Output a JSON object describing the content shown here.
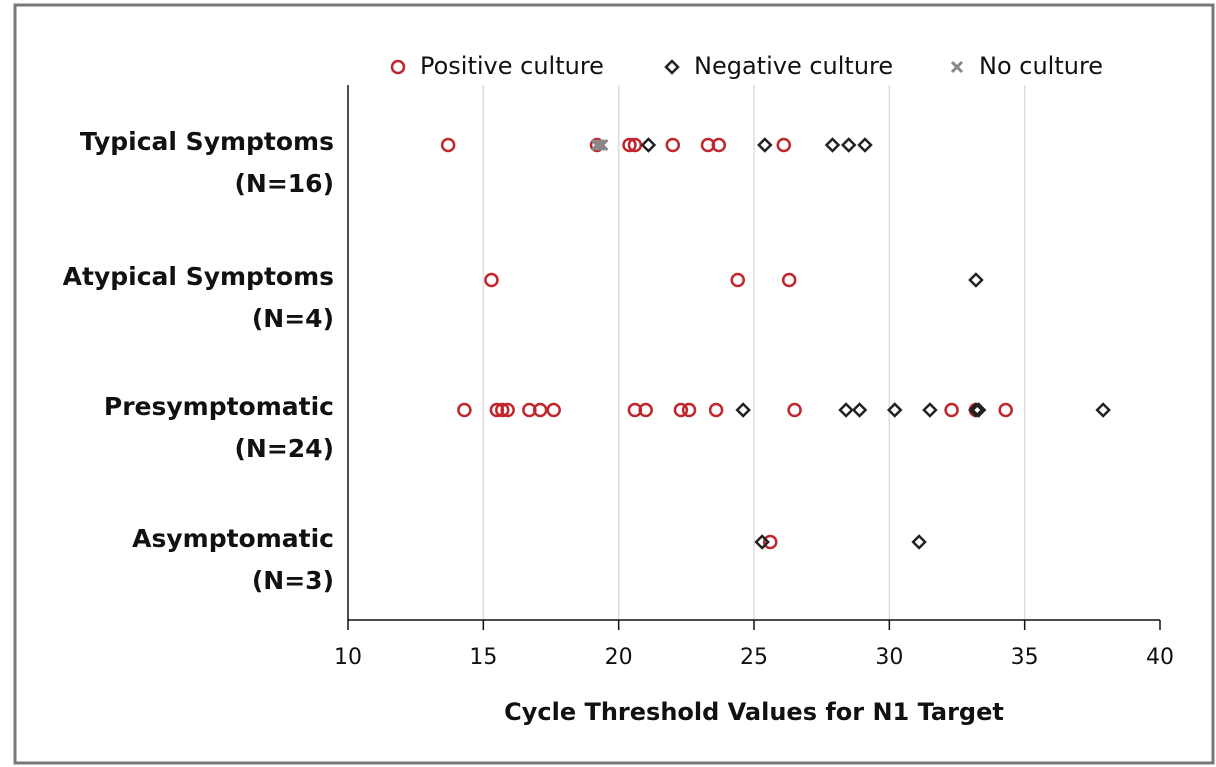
{
  "chart_data": {
    "type": "dotplot",
    "xlabel": "Cycle Threshold Values for N1 Target",
    "categories": [
      [
        "Typical Symptoms",
        "(N=16)"
      ],
      [
        "Atypical Symptoms",
        "(N=4)"
      ],
      [
        "Presymptomatic",
        "(N=24)"
      ],
      [
        "Asymptomatic",
        "(N=3)"
      ]
    ],
    "xlim": [
      10,
      40
    ],
    "xticks": [
      10,
      15,
      20,
      25,
      30,
      35,
      40
    ],
    "grid": true,
    "series": [
      {
        "name": "Positive culture",
        "color": "#c0272d",
        "marker": "circle",
        "values": [
          [
            13.7,
            19.2,
            20.4,
            20.6,
            22.0,
            23.3,
            23.7,
            26.1
          ],
          [
            15.3,
            24.4,
            26.3
          ],
          [
            14.3,
            15.5,
            15.7,
            15.9,
            16.7,
            17.1,
            17.6,
            20.6,
            21.0,
            22.3,
            22.6,
            23.6,
            26.5,
            32.3,
            33.2,
            34.3
          ],
          [
            25.6
          ]
        ]
      },
      {
        "name": "Negative culture",
        "color": "#222222",
        "marker": "diamond",
        "values": [
          [
            21.1,
            25.4,
            27.9,
            28.5,
            29.1
          ],
          [
            33.2
          ],
          [
            24.6,
            28.4,
            28.9,
            30.2,
            31.5,
            33.2,
            33.3,
            37.9
          ],
          [
            25.3,
            31.1
          ]
        ]
      },
      {
        "name": "No culture",
        "color": "#888888",
        "marker": "x",
        "values": [
          [
            19.2,
            19.3,
            19.4
          ],
          [],
          [],
          []
        ]
      }
    ]
  }
}
